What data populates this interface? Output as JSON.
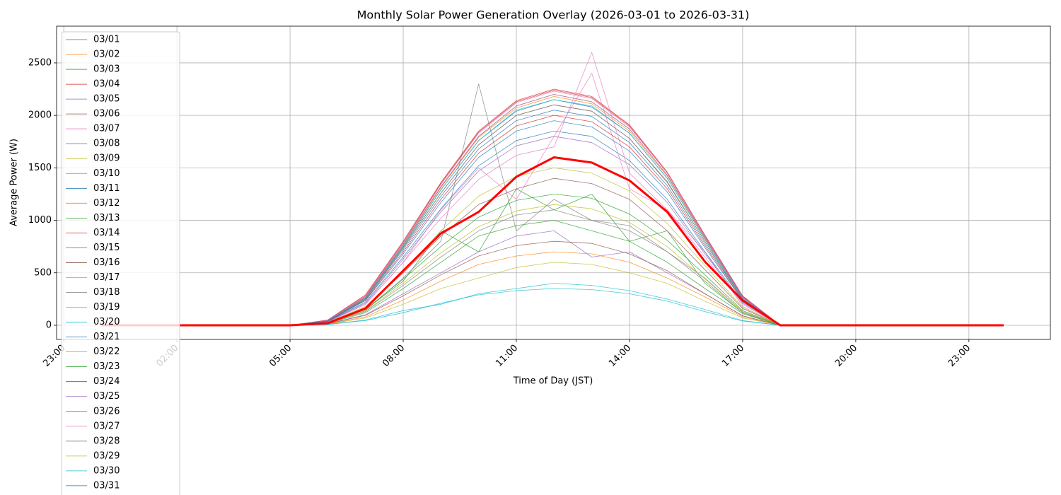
{
  "chart_data": {
    "type": "line",
    "title": "Monthly Solar Power Generation Overlay (2026-03-01 to 2026-03-31)",
    "x_label": "Time of Day (JST)",
    "y_label": "Average Power (W)",
    "x": [
      0,
      5,
      6,
      7,
      8,
      9,
      10,
      11,
      12,
      13,
      14,
      15,
      16,
      17,
      18,
      23.92
    ],
    "xlim": [
      -1.19,
      25.16
    ],
    "xticks": [
      {
        "value": -1,
        "label": "23:00"
      },
      {
        "value": 2,
        "label": "02:00"
      },
      {
        "value": 5,
        "label": "05:00"
      },
      {
        "value": 8,
        "label": "08:00"
      },
      {
        "value": 11,
        "label": "11:00"
      },
      {
        "value": 14,
        "label": "14:00"
      },
      {
        "value": 17,
        "label": "17:00"
      },
      {
        "value": 20,
        "label": "20:00"
      },
      {
        "value": 23,
        "label": "23:00"
      }
    ],
    "ylim": [
      -135,
      2850
    ],
    "yticks": [
      0,
      500,
      1000,
      1500,
      2000,
      2500
    ],
    "grid": true,
    "legend": "upper left",
    "series": [
      {
        "name": "03/01",
        "color": "#1f77b4",
        "values": [
          0,
          0,
          40,
          260,
          750,
          1290,
          1760,
          2040,
          2150,
          2080,
          1830,
          1400,
          820,
          260,
          0,
          0
        ]
      },
      {
        "name": "03/02",
        "color": "#ff7f0e",
        "values": [
          0,
          0,
          45,
          270,
          780,
          1320,
          1800,
          2090,
          2200,
          2130,
          1870,
          1430,
          840,
          270,
          0,
          0
        ]
      },
      {
        "name": "03/03",
        "color": "#2ca02c",
        "values": [
          0,
          0,
          25,
          150,
          420,
          900,
          700,
          1300,
          1100,
          1250,
          800,
          900,
          400,
          120,
          0,
          0
        ]
      },
      {
        "name": "03/04",
        "color": "#d62728",
        "values": [
          0,
          0,
          50,
          290,
          800,
          1360,
          1850,
          2140,
          2250,
          2180,
          1910,
          1460,
          860,
          280,
          0,
          0
        ]
      },
      {
        "name": "03/05",
        "color": "#9467bd",
        "values": [
          0,
          0,
          15,
          100,
          300,
          500,
          700,
          850,
          900,
          650,
          700,
          500,
          300,
          90,
          0,
          0
        ]
      },
      {
        "name": "03/06",
        "color": "#8c564b",
        "values": [
          0,
          0,
          40,
          250,
          740,
          1260,
          1720,
          2000,
          2100,
          2040,
          1780,
          1360,
          800,
          250,
          0,
          0
        ]
      },
      {
        "name": "03/07",
        "color": "#e377c2",
        "values": [
          0,
          0,
          30,
          200,
          600,
          1100,
          1500,
          1200,
          1800,
          2400,
          1300,
          1100,
          700,
          180,
          0,
          0
        ]
      },
      {
        "name": "03/08",
        "color": "#7f7f7f",
        "values": [
          0,
          0,
          20,
          140,
          450,
          800,
          2300,
          900,
          1200,
          1000,
          900,
          700,
          450,
          130,
          0,
          0
        ]
      },
      {
        "name": "03/09",
        "color": "#bcbd22",
        "values": [
          0,
          0,
          10,
          70,
          200,
          350,
          450,
          550,
          600,
          580,
          500,
          400,
          230,
          70,
          0,
          0
        ]
      },
      {
        "name": "03/10",
        "color": "#17becf",
        "values": [
          0,
          0,
          8,
          50,
          140,
          200,
          300,
          350,
          400,
          380,
          330,
          250,
          150,
          45,
          0,
          0
        ]
      },
      {
        "name": "03/11",
        "color": "#1f77b4",
        "values": [
          0,
          0,
          40,
          250,
          720,
          1230,
          1680,
          1950,
          2050,
          1990,
          1740,
          1330,
          780,
          250,
          0,
          0
        ]
      },
      {
        "name": "03/12",
        "color": "#ff7f0e",
        "values": [
          0,
          0,
          45,
          265,
          765,
          1310,
          1790,
          2070,
          2180,
          2110,
          1850,
          1420,
          830,
          265,
          0,
          0
        ]
      },
      {
        "name": "03/13",
        "color": "#2ca02c",
        "values": [
          0,
          0,
          18,
          120,
          350,
          600,
          850,
          950,
          1000,
          900,
          800,
          600,
          350,
          110,
          0,
          0
        ]
      },
      {
        "name": "03/14",
        "color": "#d62728",
        "values": [
          0,
          0,
          48,
          280,
          790,
          1350,
          1840,
          2130,
          2240,
          2170,
          1900,
          1450,
          850,
          275,
          0,
          0
        ]
      },
      {
        "name": "03/15",
        "color": "#9467bd",
        "values": [
          0,
          0,
          35,
          210,
          630,
          1080,
          1470,
          1710,
          1800,
          1740,
          1530,
          1170,
          680,
          210,
          0,
          0
        ]
      },
      {
        "name": "03/16",
        "color": "#8c564b",
        "values": [
          0,
          0,
          25,
          170,
          500,
          850,
          1150,
          1300,
          1400,
          1350,
          1200,
          900,
          530,
          160,
          0,
          0
        ]
      },
      {
        "name": "03/17",
        "color": "#e377c2",
        "values": [
          0,
          0,
          47,
          275,
          785,
          1340,
          1830,
          2120,
          2230,
          2160,
          1890,
          1450,
          850,
          270,
          0,
          0
        ]
      },
      {
        "name": "03/18",
        "color": "#7f7f7f",
        "values": [
          0,
          0,
          20,
          130,
          380,
          650,
          900,
          1050,
          1100,
          1000,
          950,
          700,
          420,
          120,
          0,
          0
        ]
      },
      {
        "name": "03/19",
        "color": "#bcbd22",
        "values": [
          0,
          0,
          28,
          180,
          520,
          900,
          1230,
          1420,
          1500,
          1450,
          1280,
          970,
          570,
          170,
          0,
          0
        ]
      },
      {
        "name": "03/20",
        "color": "#17becf",
        "values": [
          0,
          0,
          43,
          260,
          760,
          1290,
          1760,
          2050,
          2150,
          2090,
          1830,
          1400,
          820,
          260,
          0,
          0
        ]
      },
      {
        "name": "03/21",
        "color": "#1f77b4",
        "values": [
          0,
          0,
          36,
          220,
          650,
          1110,
          1520,
          1760,
          1850,
          1800,
          1570,
          1200,
          700,
          220,
          0,
          0
        ]
      },
      {
        "name": "03/22",
        "color": "#ff7f0e",
        "values": [
          0,
          0,
          12,
          80,
          240,
          420,
          580,
          660,
          700,
          680,
          600,
          450,
          270,
          80,
          0,
          0
        ]
      },
      {
        "name": "03/23",
        "color": "#2ca02c",
        "values": [
          0,
          0,
          22,
          150,
          440,
          750,
          1030,
          1190,
          1250,
          1210,
          1060,
          810,
          480,
          140,
          0,
          0
        ]
      },
      {
        "name": "03/24",
        "color": "#d62728",
        "values": [
          0,
          0,
          40,
          240,
          700,
          1200,
          1640,
          1900,
          2000,
          1940,
          1700,
          1300,
          760,
          240,
          0,
          0
        ]
      },
      {
        "name": "03/25",
        "color": "#9467bd",
        "values": [
          0,
          0,
          44,
          265,
          770,
          1320,
          1800,
          2090,
          2200,
          2130,
          1870,
          1430,
          840,
          265,
          0,
          0
        ]
      },
      {
        "name": "03/26",
        "color": "#8c564b",
        "values": [
          0,
          0,
          14,
          95,
          280,
          480,
          660,
          760,
          800,
          780,
          680,
          520,
          300,
          90,
          0,
          0
        ]
      },
      {
        "name": "03/27",
        "color": "#e377c2",
        "values": [
          0,
          0,
          32,
          200,
          600,
          1020,
          1390,
          1620,
          1700,
          2600,
          1450,
          1100,
          650,
          200,
          0,
          0
        ]
      },
      {
        "name": "03/28",
        "color": "#7f7f7f",
        "values": [
          0,
          0,
          42,
          250,
          735,
          1260,
          1720,
          2000,
          2100,
          2040,
          1780,
          1370,
          800,
          250,
          0,
          0
        ]
      },
      {
        "name": "03/29",
        "color": "#bcbd22",
        "values": [
          0,
          0,
          20,
          135,
          400,
          690,
          940,
          1090,
          1150,
          1110,
          980,
          750,
          440,
          130,
          0,
          0
        ]
      },
      {
        "name": "03/30",
        "color": "#17becf",
        "values": [
          0,
          0,
          7,
          45,
          120,
          210,
          290,
          330,
          350,
          340,
          300,
          230,
          130,
          40,
          0,
          0
        ]
      },
      {
        "name": "03/31",
        "color": "#1f77b4",
        "values": [
          0,
          0,
          38,
          235,
          680,
          1170,
          1600,
          1850,
          1950,
          1890,
          1660,
          1270,
          740,
          235,
          0,
          0
        ]
      },
      {
        "color": "#ff0000",
        "linewidth": 3,
        "values": [
          0,
          0,
          20,
          160,
          520,
          875,
          1080,
          1415,
          1600,
          1550,
          1380,
          1080,
          606,
          236,
          0,
          0
        ]
      }
    ]
  }
}
